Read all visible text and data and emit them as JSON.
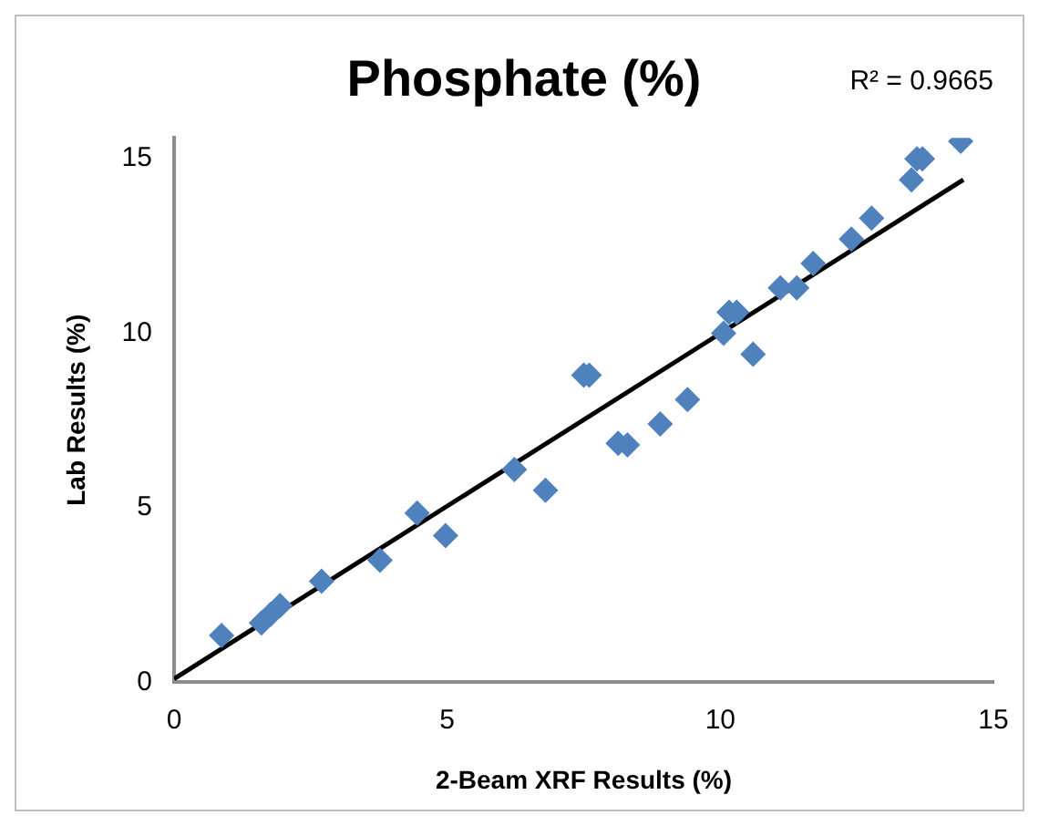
{
  "chart_data": {
    "type": "scatter",
    "title": "Phosphate (%)",
    "xlabel": "2-Beam XRF Results (%)",
    "ylabel": "Lab Results (%)",
    "annotations": [
      "R² = 0.9665"
    ],
    "x": [
      0.87,
      1.6,
      1.77,
      1.94,
      2.7,
      3.77,
      4.45,
      4.97,
      6.23,
      6.8,
      7.5,
      7.6,
      8.13,
      8.3,
      8.9,
      9.4,
      10.06,
      10.16,
      10.3,
      10.6,
      11.1,
      11.4,
      11.7,
      12.4,
      12.77,
      13.5,
      13.6,
      13.7,
      14.4
    ],
    "series": [
      {
        "type": "scatter",
        "color": "#4f81bd",
        "values": [
          1.34,
          1.7,
          1.95,
          2.2,
          2.9,
          3.5,
          4.85,
          4.2,
          6.1,
          5.5,
          8.8,
          8.8,
          6.85,
          6.8,
          7.4,
          8.1,
          10.0,
          10.6,
          10.6,
          9.4,
          11.3,
          11.3,
          12.0,
          12.7,
          13.3,
          14.4,
          15.0,
          15.0,
          15.5
        ]
      },
      {
        "type": "line",
        "color": "#000000",
        "x": [
          0,
          14.45
        ],
        "values": [
          0.1,
          14.4
        ],
        "marker": "none"
      }
    ],
    "marker": "diamond",
    "xlim": [
      0,
      15
    ],
    "ylim": [
      0,
      15.6
    ],
    "xticks": [
      0,
      5,
      10,
      15
    ],
    "yticks": [
      0,
      5,
      10,
      15
    ],
    "grid": false,
    "legend": false
  }
}
